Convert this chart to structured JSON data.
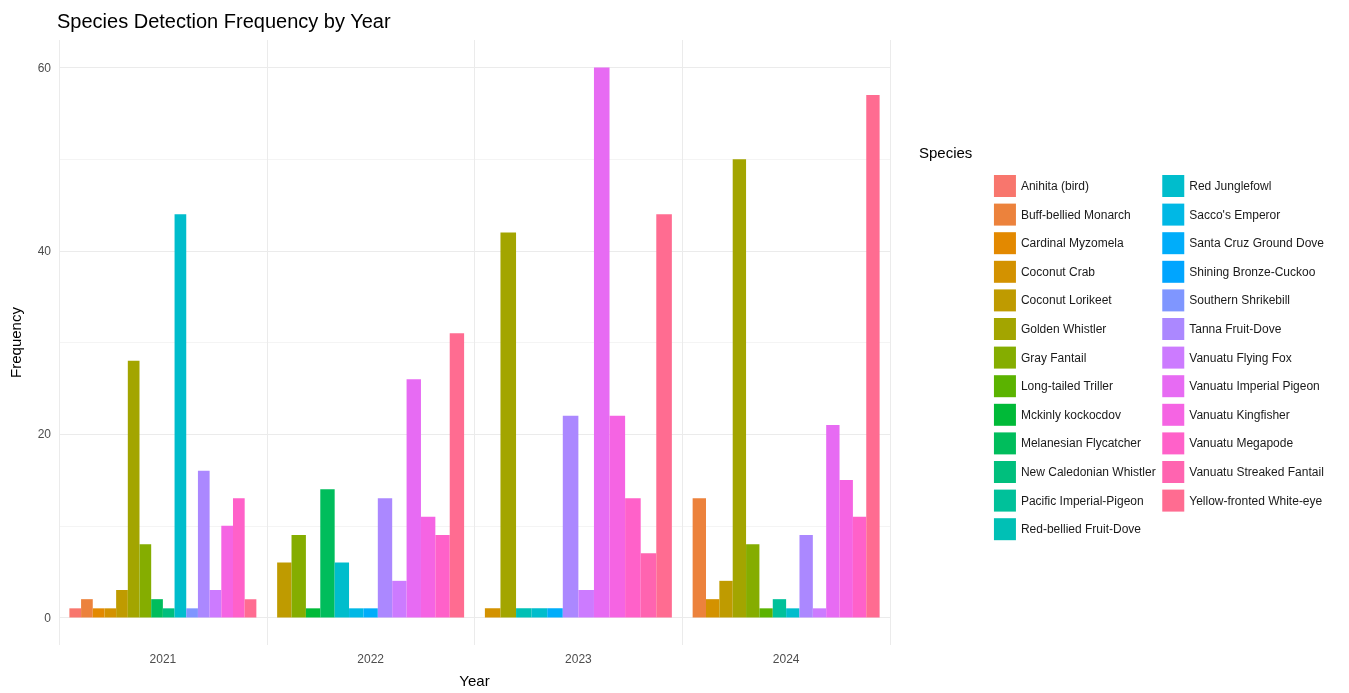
{
  "chart_data": {
    "type": "bar",
    "title": "Species Detection Frequency by Year",
    "xlabel": "Year",
    "ylabel": "Frequency",
    "legend_title": "Species",
    "categories": [
      "2021",
      "2022",
      "2023",
      "2024"
    ],
    "ylim": [
      -3,
      63
    ],
    "yticks": [
      0,
      20,
      40,
      60
    ],
    "grid": true,
    "legend": "right",
    "series": [
      {
        "name": "Anihita (bird)",
        "color": "#f8766d",
        "values": [
          1,
          null,
          null,
          null
        ]
      },
      {
        "name": "Buff-bellied Monarch",
        "color": "#ec823c",
        "values": [
          2,
          null,
          null,
          13
        ]
      },
      {
        "name": "Cardinal Myzomela",
        "color": "#e38900",
        "values": [
          1,
          null,
          null,
          null
        ]
      },
      {
        "name": "Coconut Crab",
        "color": "#d39200",
        "values": [
          1,
          null,
          1,
          2
        ]
      },
      {
        "name": "Coconut Lorikeet",
        "color": "#bf9b00",
        "values": [
          3,
          6,
          null,
          4
        ]
      },
      {
        "name": "Golden Whistler",
        "color": "#a3a500",
        "values": [
          28,
          null,
          42,
          50
        ]
      },
      {
        "name": "Gray Fantail",
        "color": "#85ad00",
        "values": [
          8,
          9,
          null,
          8
        ]
      },
      {
        "name": "Long-tailed Triller",
        "color": "#5bb300",
        "values": [
          null,
          null,
          null,
          1
        ]
      },
      {
        "name": "Mckinly kockocdov",
        "color": "#00ba38",
        "values": [
          null,
          1,
          null,
          null
        ]
      },
      {
        "name": "Melanesian Flycatcher",
        "color": "#00bd5c",
        "values": [
          2,
          14,
          null,
          null
        ]
      },
      {
        "name": "New Caledonian Whistler",
        "color": "#00bf7d",
        "values": [
          1,
          null,
          null,
          null
        ]
      },
      {
        "name": "Pacific Imperial-Pigeon",
        "color": "#00c19a",
        "values": [
          null,
          null,
          null,
          2
        ]
      },
      {
        "name": "Red-bellied Fruit-Dove",
        "color": "#00c0b5",
        "values": [
          null,
          null,
          1,
          null
        ]
      },
      {
        "name": "Red Junglefowl",
        "color": "#00bdcc",
        "values": [
          44,
          6,
          1,
          1
        ]
      },
      {
        "name": "Sacco's Emperor",
        "color": "#00b8e5",
        "values": [
          null,
          1,
          null,
          null
        ]
      },
      {
        "name": "Santa Cruz Ground Dove",
        "color": "#00adfa",
        "values": [
          null,
          1,
          1,
          null
        ]
      },
      {
        "name": "Shining Bronze-Cuckoo",
        "color": "#00a5ff",
        "values": [
          null,
          null,
          null,
          null
        ]
      },
      {
        "name": "Southern Shrikebill",
        "color": "#7f96ff",
        "values": [
          1,
          null,
          null,
          null
        ]
      },
      {
        "name": "Tanna Fruit-Dove",
        "color": "#ab88ff",
        "values": [
          16,
          13,
          22,
          9
        ]
      },
      {
        "name": "Vanuatu Flying Fox",
        "color": "#cc7bff",
        "values": [
          3,
          4,
          3,
          1
        ]
      },
      {
        "name": "Vanuatu Imperial Pigeon",
        "color": "#e76bf3",
        "values": [
          null,
          26,
          60,
          21
        ]
      },
      {
        "name": "Vanuatu Kingfisher",
        "color": "#f564e3",
        "values": [
          10,
          11,
          22,
          15
        ]
      },
      {
        "name": "Vanuatu Megapode",
        "color": "#ff61c9",
        "values": [
          13,
          9,
          13,
          11
        ]
      },
      {
        "name": "Vanuatu Streaked Fantail",
        "color": "#ff64b0",
        "values": [
          null,
          null,
          7,
          null
        ]
      },
      {
        "name": "Yellow-fronted White-eye",
        "color": "#ff6c91",
        "values": [
          2,
          31,
          44,
          57
        ]
      }
    ]
  }
}
